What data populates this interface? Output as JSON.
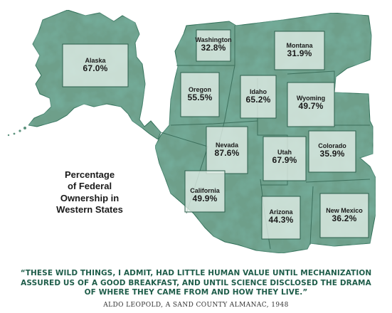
{
  "legend": {
    "line1": "Percentage",
    "line2": "of Federal",
    "line3": "Ownership in",
    "line4": "Western States"
  },
  "states": [
    {
      "name": "Alaska",
      "value": "67.0%"
    },
    {
      "name": "Washington",
      "value": "32.8%"
    },
    {
      "name": "Montana",
      "value": "31.9%"
    },
    {
      "name": "Oregon",
      "value": "55.5%"
    },
    {
      "name": "Idaho",
      "value": "65.2%"
    },
    {
      "name": "Wyoming",
      "value": "49.7%"
    },
    {
      "name": "Nevada",
      "value": "87.6%"
    },
    {
      "name": "Utah",
      "value": "67.9%"
    },
    {
      "name": "Colorado",
      "value": "35.9%"
    },
    {
      "name": "California",
      "value": "49.9%"
    },
    {
      "name": "Arizona",
      "value": "44.3%"
    },
    {
      "name": "New Mexico",
      "value": "36.2%"
    }
  ],
  "quote": {
    "text": "“THESE WILD THINGS, I ADMIT, HAD LITTLE HUMAN VALUE UNTIL MECHANIZATION ASSURED US OF A GOOD BREAKFAST, AND UNTIL SCIENCE DISCLOSED THE DRAMA OF WHERE THEY CAME FROM AND HOW THEY LIVE.”",
    "attribution": "ALDO LEOPOLD, A SAND COUNTY ALMANAC, 1948"
  },
  "colors": {
    "map_dark": "#2f6e57",
    "map_mid": "#5c927d",
    "map_light": "#c9ddd3",
    "box_fill": "#e3eee8",
    "quote": "#1f5d4a"
  }
}
